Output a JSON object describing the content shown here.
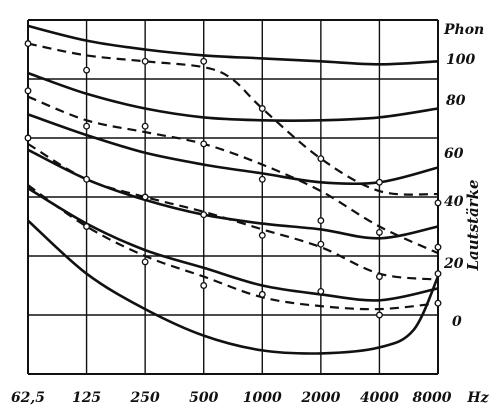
{
  "chart_data": {
    "type": "line",
    "x_scale": "log2",
    "x_ticks": [
      "62,5",
      "125",
      "250",
      "500",
      "1000",
      "2000",
      "4000",
      "8000"
    ],
    "x_unit": "Hz",
    "y_unit": "Phon",
    "y_axis_title": "Lautstärke",
    "phon_levels": [
      "100",
      "80",
      "60",
      "40",
      "20",
      "0"
    ],
    "grid": true,
    "solid_curves": [
      {
        "phon": 100,
        "points": [
          [
            62.5,
            108
          ],
          [
            125,
            103
          ],
          [
            250,
            100
          ],
          [
            500,
            98
          ],
          [
            1000,
            97
          ],
          [
            2000,
            96
          ],
          [
            4000,
            95
          ],
          [
            8000,
            96
          ]
        ]
      },
      {
        "phon": 80,
        "points": [
          [
            62.5,
            92
          ],
          [
            125,
            85
          ],
          [
            250,
            80
          ],
          [
            500,
            77
          ],
          [
            1000,
            76
          ],
          [
            2000,
            76
          ],
          [
            4000,
            77
          ],
          [
            8000,
            80
          ]
        ]
      },
      {
        "phon": 60,
        "points": [
          [
            62.5,
            78
          ],
          [
            125,
            71
          ],
          [
            250,
            65
          ],
          [
            500,
            61
          ],
          [
            1000,
            58
          ],
          [
            2000,
            55
          ],
          [
            4000,
            55
          ],
          [
            8000,
            60
          ]
        ]
      },
      {
        "phon": 40,
        "points": [
          [
            62.5,
            66
          ],
          [
            125,
            56
          ],
          [
            250,
            49
          ],
          [
            500,
            44
          ],
          [
            1000,
            41
          ],
          [
            2000,
            39
          ],
          [
            4000,
            36
          ],
          [
            8000,
            40
          ]
        ]
      },
      {
        "phon": 20,
        "points": [
          [
            62.5,
            53
          ],
          [
            125,
            41
          ],
          [
            250,
            32
          ],
          [
            500,
            26
          ],
          [
            1000,
            20
          ],
          [
            2000,
            17
          ],
          [
            4000,
            15
          ],
          [
            8000,
            19
          ]
        ]
      },
      {
        "phon": 0,
        "points": [
          [
            62.5,
            42
          ],
          [
            125,
            24
          ],
          [
            250,
            12
          ],
          [
            500,
            3
          ],
          [
            1000,
            -2
          ],
          [
            2000,
            -3
          ],
          [
            4000,
            -1
          ],
          [
            6000,
            5
          ],
          [
            8000,
            23
          ]
        ]
      }
    ],
    "dashed_curves": [
      {
        "points": [
          [
            62.5,
            102
          ],
          [
            125,
            98
          ],
          [
            250,
            96
          ],
          [
            500,
            94
          ],
          [
            700,
            90
          ],
          [
            1000,
            80
          ],
          [
            2000,
            63
          ],
          [
            4000,
            52
          ],
          [
            8000,
            51
          ]
        ],
        "markers": [
          [
            62.5,
            102
          ],
          [
            125,
            93
          ],
          [
            250,
            96
          ],
          [
            500,
            96
          ],
          [
            1000,
            80
          ],
          [
            2000,
            63
          ],
          [
            4000,
            55
          ],
          [
            8000,
            48
          ]
        ]
      },
      {
        "points": [
          [
            62.5,
            84
          ],
          [
            125,
            76
          ],
          [
            250,
            72
          ],
          [
            500,
            68
          ],
          [
            1000,
            61
          ],
          [
            2000,
            52
          ],
          [
            4000,
            40
          ],
          [
            8000,
            31
          ]
        ],
        "markers": [
          [
            62.5,
            86
          ],
          [
            125,
            74
          ],
          [
            250,
            74
          ],
          [
            500,
            68
          ],
          [
            1000,
            56
          ],
          [
            2000,
            42
          ],
          [
            4000,
            38
          ],
          [
            8000,
            33
          ]
        ]
      },
      {
        "points": [
          [
            62.5,
            68
          ],
          [
            125,
            56
          ],
          [
            250,
            50
          ],
          [
            500,
            45
          ],
          [
            1000,
            39
          ],
          [
            2000,
            33
          ],
          [
            4000,
            24
          ],
          [
            8000,
            22
          ]
        ],
        "markers": [
          [
            62.5,
            70
          ],
          [
            125,
            56
          ],
          [
            250,
            50
          ],
          [
            500,
            44
          ],
          [
            1000,
            37
          ],
          [
            2000,
            34
          ],
          [
            4000,
            23
          ],
          [
            8000,
            24
          ]
        ]
      },
      {
        "points": [
          [
            62.5,
            54
          ],
          [
            125,
            40
          ],
          [
            250,
            30
          ],
          [
            500,
            23
          ],
          [
            1000,
            16
          ],
          [
            2000,
            13
          ],
          [
            4000,
            12
          ],
          [
            8000,
            14
          ]
        ],
        "markers": [
          [
            125,
            40
          ],
          [
            250,
            28
          ],
          [
            500,
            20
          ],
          [
            1000,
            17
          ],
          [
            2000,
            18
          ],
          [
            4000,
            10
          ],
          [
            8000,
            14
          ]
        ]
      }
    ]
  }
}
